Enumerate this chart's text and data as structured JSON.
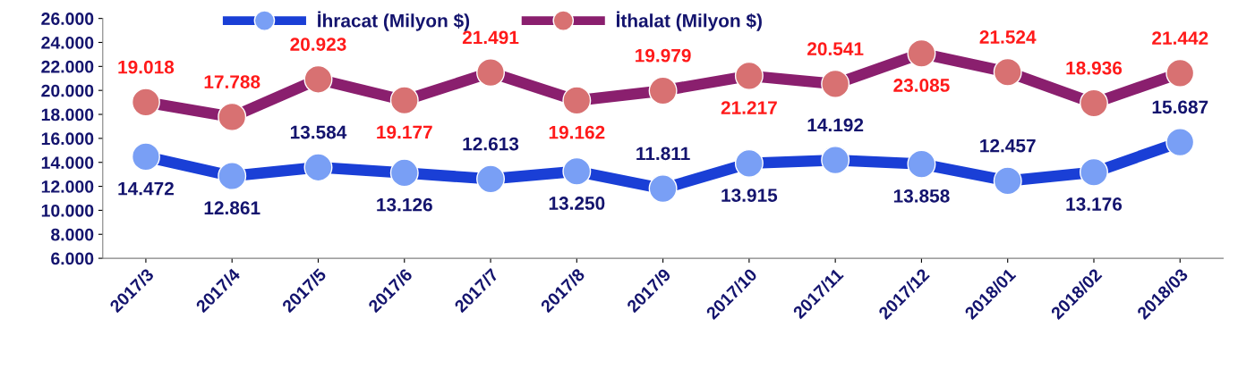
{
  "chart_data": {
    "type": "line",
    "categories": [
      "2017/3",
      "2017/4",
      "2017/5",
      "2017/6",
      "2017/7",
      "2017/8",
      "2017/9",
      "2017/10",
      "2017/11",
      "2017/12",
      "2018/01",
      "2018/02",
      "2018/03"
    ],
    "series": [
      {
        "name": "İhracat (Milyon $)",
        "color": "#1a3fd6",
        "values": [
          14472,
          12861,
          13584,
          13126,
          12613,
          13250,
          11811,
          13915,
          14192,
          13858,
          12457,
          13176,
          15687
        ],
        "value_labels": [
          "14.472",
          "12.861",
          "13.584",
          "13.126",
          "12.613",
          "13.250",
          "11.811",
          "13.915",
          "14.192",
          "13.858",
          "12.457",
          "13.176",
          "15.687"
        ]
      },
      {
        "name": "İthalat (Milyon $)",
        "color": "#8a1f6e",
        "values": [
          19018,
          17788,
          20923,
          19177,
          21491,
          19162,
          19979,
          21217,
          20541,
          23085,
          21524,
          18936,
          21442
        ],
        "value_labels": [
          "19.018",
          "17.788",
          "20.923",
          "19.177",
          "21.491",
          "19.162",
          "19.979",
          "21.217",
          "20.541",
          "23.085",
          "21.524",
          "18.936",
          "21.442"
        ]
      }
    ],
    "ylim": [
      6000,
      26000
    ],
    "yticks": [
      {
        "value": 6000,
        "label": "6.000"
      },
      {
        "value": 8000,
        "label": "8.000"
      },
      {
        "value": 10000,
        "label": "10.000"
      },
      {
        "value": 12000,
        "label": "12.000"
      },
      {
        "value": 14000,
        "label": "14.000"
      },
      {
        "value": 16000,
        "label": "16.000"
      },
      {
        "value": 18000,
        "label": "18.000"
      },
      {
        "value": 20000,
        "label": "20.000"
      },
      {
        "value": 22000,
        "label": "22.000"
      },
      {
        "value": 24000,
        "label": "24.000"
      },
      {
        "value": 26000,
        "label": "26.000"
      }
    ],
    "grid": false,
    "legend": "top",
    "marker": "circle",
    "line_style": "solid"
  }
}
